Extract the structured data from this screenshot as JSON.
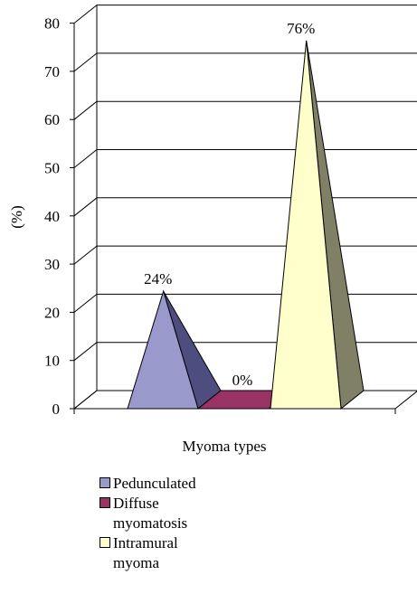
{
  "chart_data": {
    "type": "bar",
    "title": "",
    "xlabel": "Myoma types",
    "ylabel": "(%)",
    "ylim": [
      0,
      80
    ],
    "yticks": [
      0,
      10,
      20,
      30,
      40,
      50,
      60,
      70,
      80
    ],
    "grid": true,
    "legend_position": "bottom",
    "categories": [
      "Pedunculated",
      "Diffuse myomatosis",
      "Intramural myoma"
    ],
    "values": [
      24,
      0,
      76
    ],
    "data_labels": [
      "24%",
      "0%",
      "76%"
    ],
    "colors": {
      "front": [
        "#9999cc",
        "#993366",
        "#ffffcc"
      ],
      "side": [
        "#4d4d80",
        "#662244",
        "#808066"
      ]
    }
  }
}
